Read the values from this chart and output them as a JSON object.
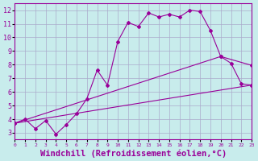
{
  "title": "",
  "xlabel": "Windchill (Refroidissement éolien,°C)",
  "xlabel_fontsize": 7.5,
  "background_color": "#c8ecec",
  "grid_color": "#aaaacc",
  "line_color": "#990099",
  "xlim": [
    0,
    23
  ],
  "ylim": [
    2.5,
    12.5
  ],
  "xticks": [
    0,
    1,
    2,
    3,
    4,
    5,
    6,
    7,
    8,
    9,
    10,
    11,
    12,
    13,
    14,
    15,
    16,
    17,
    18,
    19,
    20,
    21,
    22,
    23
  ],
  "yticks": [
    3,
    4,
    5,
    6,
    7,
    8,
    9,
    10,
    11,
    12
  ],
  "line1_x": [
    0,
    1,
    2,
    3,
    4,
    5,
    6,
    7,
    8,
    9,
    10,
    11,
    12,
    13,
    14,
    15,
    16,
    17,
    18,
    19,
    20,
    21,
    22,
    23
  ],
  "line1_y": [
    3.7,
    4.0,
    3.3,
    3.9,
    2.9,
    3.6,
    4.4,
    5.5,
    7.6,
    6.5,
    9.7,
    11.1,
    10.8,
    11.8,
    11.5,
    11.7,
    11.5,
    12.0,
    11.9,
    10.5,
    8.6,
    8.1,
    6.6,
    6.5
  ],
  "line2_x": [
    0,
    23
  ],
  "line2_y": [
    3.7,
    6.5
  ],
  "line3_x": [
    0,
    20,
    23
  ],
  "line3_y": [
    3.7,
    8.6,
    7.95
  ]
}
